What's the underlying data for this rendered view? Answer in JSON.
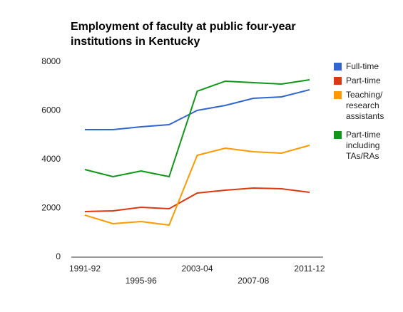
{
  "chart_data": {
    "type": "line",
    "title": "Employment of faculty at public four-year institutions in Kentucky",
    "categories": [
      "1991-92",
      null,
      "1995-96",
      null,
      "2003-04",
      null,
      "2007-08",
      null,
      "2011-12"
    ],
    "series": [
      {
        "name": "Full-time",
        "color": "#3366cc",
        "values": [
          5226,
          5226,
          5343,
          5430,
          6015,
          6219,
          6511,
          6569,
          6861
        ]
      },
      {
        "name": "Part-time",
        "color": "#dc3912",
        "values": [
          1869,
          1898,
          2044,
          1985,
          2628,
          2745,
          2832,
          2803,
          2657
        ]
      },
      {
        "name": "Teaching/ research assistants",
        "color": "#ff9900",
        "values": [
          1723,
          1372,
          1460,
          1314,
          4175,
          4467,
          4321,
          4263,
          4584
        ]
      },
      {
        "name": "Part-time including TAs/RAs",
        "color": "#109618",
        "values": [
          3591,
          3299,
          3533,
          3299,
          6803,
          7212,
          7153,
          7095,
          7270
        ]
      }
    ],
    "ylim": [
      0,
      8000
    ],
    "yticks": [
      0,
      2000,
      4000,
      6000,
      8000
    ],
    "grid": false,
    "legend": "right"
  }
}
